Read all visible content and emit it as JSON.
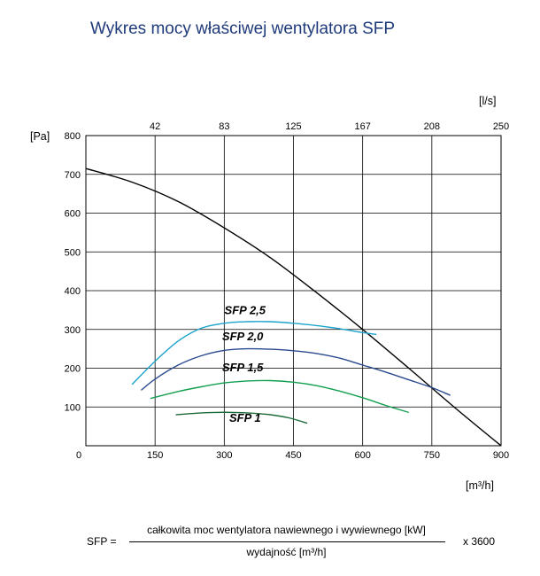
{
  "chart_data": {
    "type": "line",
    "title": "Wykres mocy właściwej wentylatora SFP",
    "ylabel": "[Pa]",
    "xlabel": "[m³/h]",
    "x2label": "[l/s]",
    "xlim": [
      0,
      900
    ],
    "ylim": [
      0,
      800
    ],
    "x_ticks": [
      "0",
      "150",
      "300",
      "450",
      "600",
      "750",
      "900"
    ],
    "y_ticks": [
      "100",
      "200",
      "300",
      "400",
      "500",
      "600",
      "700",
      "800"
    ],
    "x2_ticks": [
      "42",
      "83",
      "125",
      "167",
      "208",
      "250"
    ],
    "grid": true,
    "colors": {
      "fan": "#000000",
      "sfp1": "#1d6b3a",
      "sfp15": "#12a050",
      "sfp20": "#2a4a8f",
      "sfp25": "#1ba3cc",
      "title": "#1f3a7a"
    },
    "series": [
      {
        "name": "",
        "key": "fan",
        "x": [
          0,
          100,
          200,
          300,
          400,
          500,
          600,
          700,
          800,
          900
        ],
        "y": [
          715,
          680,
          630,
          562,
          485,
          395,
          300,
          200,
          98,
          0
        ]
      },
      {
        "name": "SFP 2,5",
        "key": "sfp25",
        "x": [
          100,
          150,
          200,
          250,
          300,
          350,
          400,
          450,
          500,
          550,
          600,
          630
        ],
        "y": [
          158,
          218,
          270,
          303,
          316,
          320,
          320,
          316,
          310,
          302,
          292,
          287
        ]
      },
      {
        "name": "SFP 2,0",
        "key": "sfp20",
        "x": [
          120,
          150,
          200,
          250,
          300,
          350,
          400,
          450,
          500,
          550,
          600,
          650,
          700,
          750,
          790
        ],
        "y": [
          143,
          172,
          208,
          232,
          246,
          250,
          249,
          245,
          238,
          226,
          208,
          190,
          170,
          150,
          130
        ]
      },
      {
        "name": "SFP 1,5",
        "key": "sfp15",
        "x": [
          140,
          200,
          250,
          300,
          350,
          400,
          450,
          500,
          550,
          600,
          650,
          700
        ],
        "y": [
          122,
          140,
          152,
          162,
          167,
          168,
          164,
          155,
          141,
          124,
          104,
          86
        ]
      },
      {
        "name": "SFP 1",
        "key": "sfp1",
        "x": [
          195,
          240,
          280,
          320,
          360,
          400,
          440,
          480
        ],
        "y": [
          80,
          84,
          86,
          86,
          84,
          80,
          72,
          58
        ]
      }
    ],
    "annotations": [
      {
        "text": "SFP 2,5",
        "x": 345,
        "y": 340
      },
      {
        "text": "SFP 2,0",
        "x": 340,
        "y": 272
      },
      {
        "text": "SFP 1,5",
        "x": 340,
        "y": 192
      },
      {
        "text": "SFP 1",
        "x": 345,
        "y": 62
      }
    ]
  },
  "formula": {
    "lhs": "SFP =",
    "numerator": "całkowita moc wentylatora nawiewnego i wywiewnego [kW]",
    "denominator": "wydajność [m³/h]",
    "rhs": "x 3600"
  }
}
